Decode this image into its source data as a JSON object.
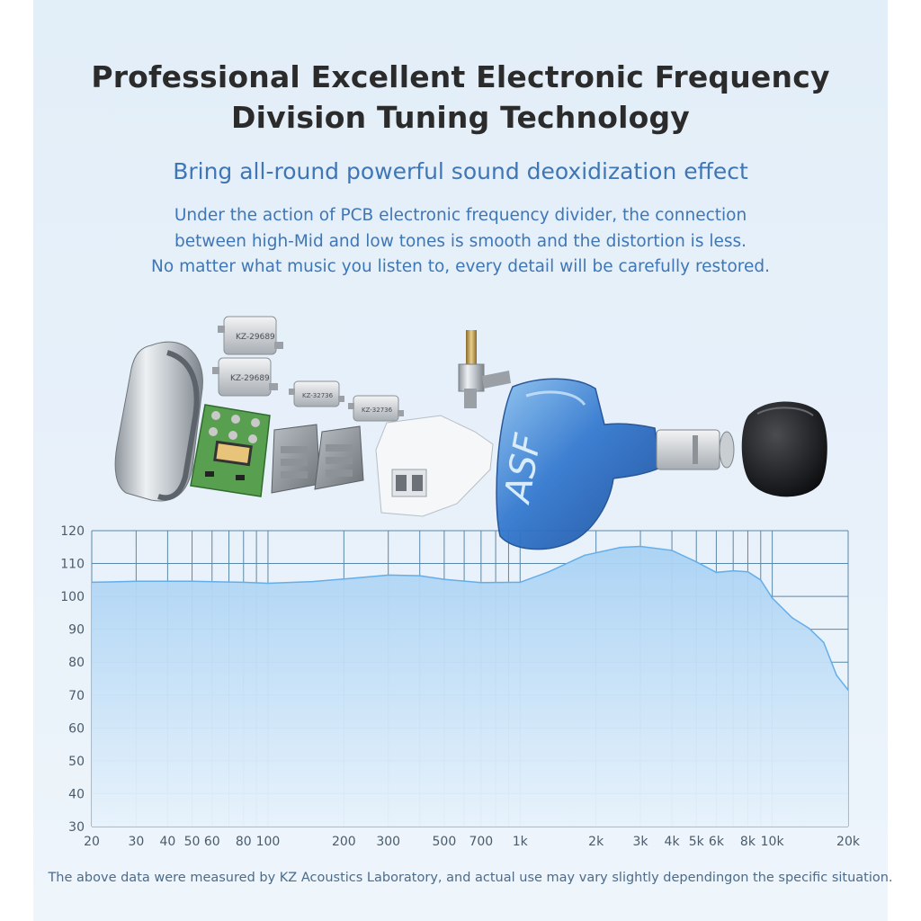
{
  "heading": {
    "title_line1": "Professional Excellent Electronic Frequency",
    "title_line2": "Division Tuning Technology",
    "subtitle": "Bring all-round powerful sound deoxidization effect",
    "desc_line1": "Under the action of PCB electronic frequency divider, the connection",
    "desc_line2": "between high-Mid and low tones is smooth and the distortion is less.",
    "desc_line3": "No matter what music you listen to, every detail will be carefully restored."
  },
  "product": {
    "driver_label_1": "KZ-29689",
    "driver_label_2": "KZ-29689",
    "driver_label_3": "KZ-32736",
    "driver_label_4": "KZ-32736",
    "shell_brand": "ASF"
  },
  "colors": {
    "fill_top": "#a9d2f4",
    "fill_bottom": "#e7f2fb",
    "curve": "#64aee9",
    "grid": "#5a88a8",
    "shell_blue": "#2f6fc6"
  },
  "chart_data": {
    "type": "area",
    "x_scale": "log",
    "xlim": [
      20,
      20000
    ],
    "ylim": [
      30,
      120
    ],
    "y_ticks": [
      120,
      110,
      100,
      90,
      80,
      70,
      60,
      50,
      40,
      30
    ],
    "x_ticks": [
      {
        "v": 20,
        "label": "20"
      },
      {
        "v": 30,
        "label": "30"
      },
      {
        "v": 40,
        "label": "40"
      },
      {
        "v": 50,
        "label": "50"
      },
      {
        "v": 60,
        "label": "60"
      },
      {
        "v": 80,
        "label": "80"
      },
      {
        "v": 100,
        "label": "100"
      },
      {
        "v": 200,
        "label": "200"
      },
      {
        "v": 300,
        "label": "300"
      },
      {
        "v": 500,
        "label": "500"
      },
      {
        "v": 700,
        "label": "700"
      },
      {
        "v": 1000,
        "label": "1k"
      },
      {
        "v": 2000,
        "label": "2k"
      },
      {
        "v": 3000,
        "label": "3k"
      },
      {
        "v": 4000,
        "label": "4k"
      },
      {
        "v": 5000,
        "label": "5k"
      },
      {
        "v": 6000,
        "label": "6k"
      },
      {
        "v": 8000,
        "label": "8k"
      },
      {
        "v": 10000,
        "label": "10k"
      },
      {
        "v": 20000,
        "label": "20k"
      }
    ],
    "grid_x": [
      20,
      30,
      40,
      50,
      60,
      70,
      80,
      90,
      100,
      200,
      300,
      400,
      500,
      600,
      700,
      800,
      900,
      1000,
      2000,
      3000,
      4000,
      5000,
      6000,
      7000,
      8000,
      9000,
      10000,
      20000
    ],
    "grid_y": [
      30,
      40,
      50,
      60,
      70,
      80,
      90,
      100,
      110,
      120
    ],
    "x": [
      20,
      30,
      50,
      80,
      100,
      150,
      200,
      300,
      400,
      500,
      700,
      1000,
      1300,
      1800,
      2500,
      3000,
      4000,
      5000,
      6000,
      7000,
      8000,
      9000,
      10000,
      12000,
      14000,
      16000,
      18000,
      20000
    ],
    "y": [
      104.3,
      104.6,
      104.6,
      104.3,
      104,
      104.5,
      105.3,
      106.5,
      106.3,
      105.2,
      104.2,
      104.3,
      107.5,
      112.5,
      114.9,
      115.2,
      114,
      110.5,
      107.3,
      107.8,
      107.5,
      105,
      99.5,
      93.5,
      90.3,
      86,
      76,
      71.5
    ],
    "grid": true,
    "title": "",
    "xlabel": "",
    "ylabel": ""
  },
  "footnote": "The above data were measured by KZ Acoustics Laboratory, and actual use may vary slightly dependingon the specific situation."
}
